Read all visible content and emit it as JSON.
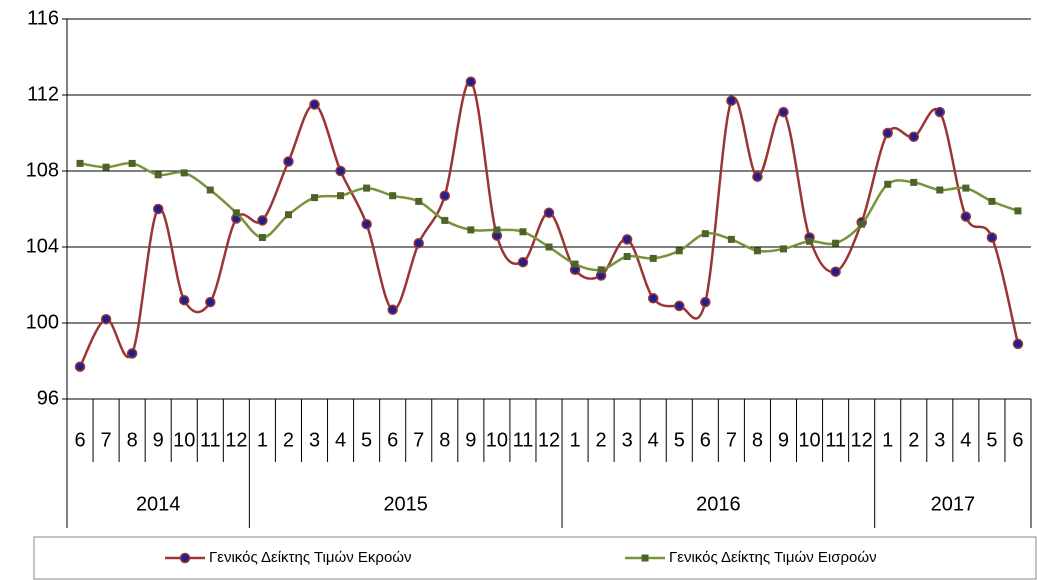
{
  "chart_data": {
    "type": "line",
    "category_groups": [
      {
        "name": "2014",
        "categories": [
          "6",
          "7",
          "8",
          "9",
          "10",
          "11",
          "12"
        ]
      },
      {
        "name": "2015",
        "categories": [
          "1",
          "2",
          "3",
          "4",
          "5",
          "6",
          "7",
          "8",
          "9",
          "10",
          "11",
          "12"
        ]
      },
      {
        "name": "2016",
        "categories": [
          "1",
          "2",
          "3",
          "4",
          "5",
          "6",
          "7",
          "8",
          "9",
          "10",
          "11",
          "12"
        ]
      },
      {
        "name": "2017",
        "categories": [
          "1",
          "2",
          "3",
          "4",
          "5",
          "6"
        ]
      }
    ],
    "series": [
      {
        "name": "Γενικός Δείκτης Τιμών Εκροών",
        "color": "#9b3535",
        "marker": "circle",
        "marker_color": "#1f1f8f",
        "values": [
          97.7,
          100.2,
          98.4,
          106.0,
          101.2,
          101.1,
          105.5,
          105.4,
          108.5,
          111.5,
          108.0,
          105.2,
          100.7,
          104.2,
          106.7,
          112.7,
          104.6,
          103.2,
          105.8,
          102.8,
          102.5,
          104.4,
          101.3,
          100.9,
          101.1,
          111.7,
          107.7,
          111.1,
          104.5,
          102.7,
          105.3,
          110.0,
          109.8,
          111.1,
          105.6,
          104.5,
          98.9
        ]
      },
      {
        "name": "Γενικός Δείκτης Τιμών Εισροών",
        "color": "#77933c",
        "marker": "square",
        "marker_color": "#4f6228",
        "values": [
          108.4,
          108.2,
          108.4,
          107.8,
          107.9,
          107.0,
          105.8,
          104.5,
          105.7,
          106.6,
          106.7,
          107.1,
          106.7,
          106.4,
          105.4,
          104.9,
          104.9,
          104.8,
          104.0,
          103.1,
          102.8,
          103.5,
          103.4,
          103.8,
          104.7,
          104.4,
          103.8,
          103.9,
          104.3,
          104.2,
          105.2,
          107.3,
          107.4,
          107.0,
          107.1,
          106.4,
          105.9
        ]
      }
    ],
    "ylim": [
      96,
      116
    ],
    "yticks": [
      96,
      100,
      104,
      108,
      112,
      116
    ],
    "grid": true,
    "smooth": true,
    "legend": "bottom"
  }
}
